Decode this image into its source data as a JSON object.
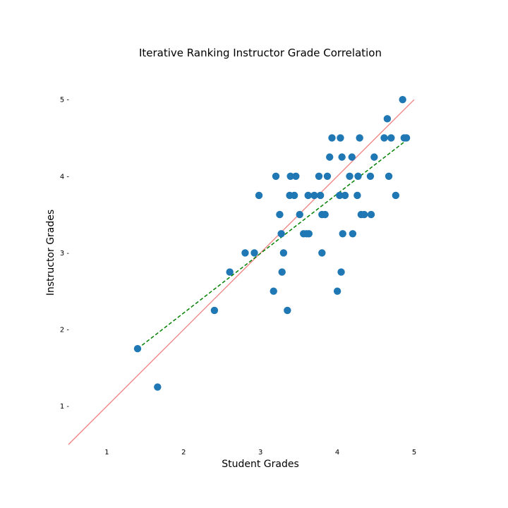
{
  "chart_data": {
    "type": "scatter",
    "title": "Iterative Ranking Instructor Grade Correlation",
    "xlabel": "Student Grades",
    "ylabel": "Instructor Grades",
    "xlim": [
      0.5,
      5.0
    ],
    "ylim": [
      0.5,
      5.25
    ],
    "xticks": [
      "1",
      "2",
      "3",
      "4",
      "5"
    ],
    "yticks": [
      "1 -",
      "2 -",
      "3 -",
      "4 -",
      "5 -"
    ],
    "grid": false,
    "legend": "none",
    "colors": {
      "points": "#1f77b4",
      "identity_line": "#f08080",
      "fit_line": "#008000"
    },
    "series": [
      {
        "values": [
          [
            1.4,
            1.75
          ],
          [
            1.66,
            1.25
          ],
          [
            2.4,
            2.25
          ],
          [
            2.6,
            2.75
          ],
          [
            2.8,
            3.0
          ],
          [
            2.92,
            3.0
          ],
          [
            2.98,
            3.75
          ],
          [
            3.17,
            2.5
          ],
          [
            3.2,
            4.0
          ],
          [
            3.25,
            3.5
          ],
          [
            3.27,
            3.25
          ],
          [
            3.28,
            2.75
          ],
          [
            3.3,
            3.0
          ],
          [
            3.35,
            2.25
          ],
          [
            3.38,
            3.75
          ],
          [
            3.39,
            4.0
          ],
          [
            3.44,
            3.75
          ],
          [
            3.46,
            4.0
          ],
          [
            3.51,
            3.5
          ],
          [
            3.56,
            3.25
          ],
          [
            3.6,
            3.25
          ],
          [
            3.62,
            3.75
          ],
          [
            3.63,
            3.25
          ],
          [
            3.7,
            3.75
          ],
          [
            3.76,
            4.0
          ],
          [
            3.78,
            3.75
          ],
          [
            3.8,
            3.5
          ],
          [
            3.8,
            3.0
          ],
          [
            3.84,
            3.5
          ],
          [
            3.87,
            4.0
          ],
          [
            3.9,
            4.25
          ],
          [
            3.93,
            4.5
          ],
          [
            4.0,
            2.5
          ],
          [
            4.03,
            3.75
          ],
          [
            4.04,
            4.5
          ],
          [
            4.05,
            2.75
          ],
          [
            4.06,
            4.25
          ],
          [
            4.07,
            3.25
          ],
          [
            4.1,
            3.75
          ],
          [
            4.16,
            4.0
          ],
          [
            4.19,
            4.25
          ],
          [
            4.2,
            3.25
          ],
          [
            4.26,
            3.75
          ],
          [
            4.27,
            4.0
          ],
          [
            4.29,
            4.5
          ],
          [
            4.31,
            3.5
          ],
          [
            4.35,
            3.5
          ],
          [
            4.43,
            4.0
          ],
          [
            4.44,
            3.5
          ],
          [
            4.48,
            4.25
          ],
          [
            4.61,
            4.5
          ],
          [
            4.65,
            4.75
          ],
          [
            4.67,
            4.0
          ],
          [
            4.7,
            4.5
          ],
          [
            4.76,
            3.75
          ],
          [
            4.85,
            5.0
          ],
          [
            4.87,
            4.5
          ],
          [
            4.9,
            4.5
          ]
        ]
      }
    ],
    "lines": [
      {
        "kind": "identity",
        "style": "solid",
        "from": [
          0.5,
          0.5
        ],
        "to": [
          5.0,
          5.0
        ]
      },
      {
        "kind": "fit",
        "style": "dashed",
        "from": [
          1.4,
          1.75
        ],
        "to": [
          4.9,
          4.47
        ]
      }
    ]
  }
}
